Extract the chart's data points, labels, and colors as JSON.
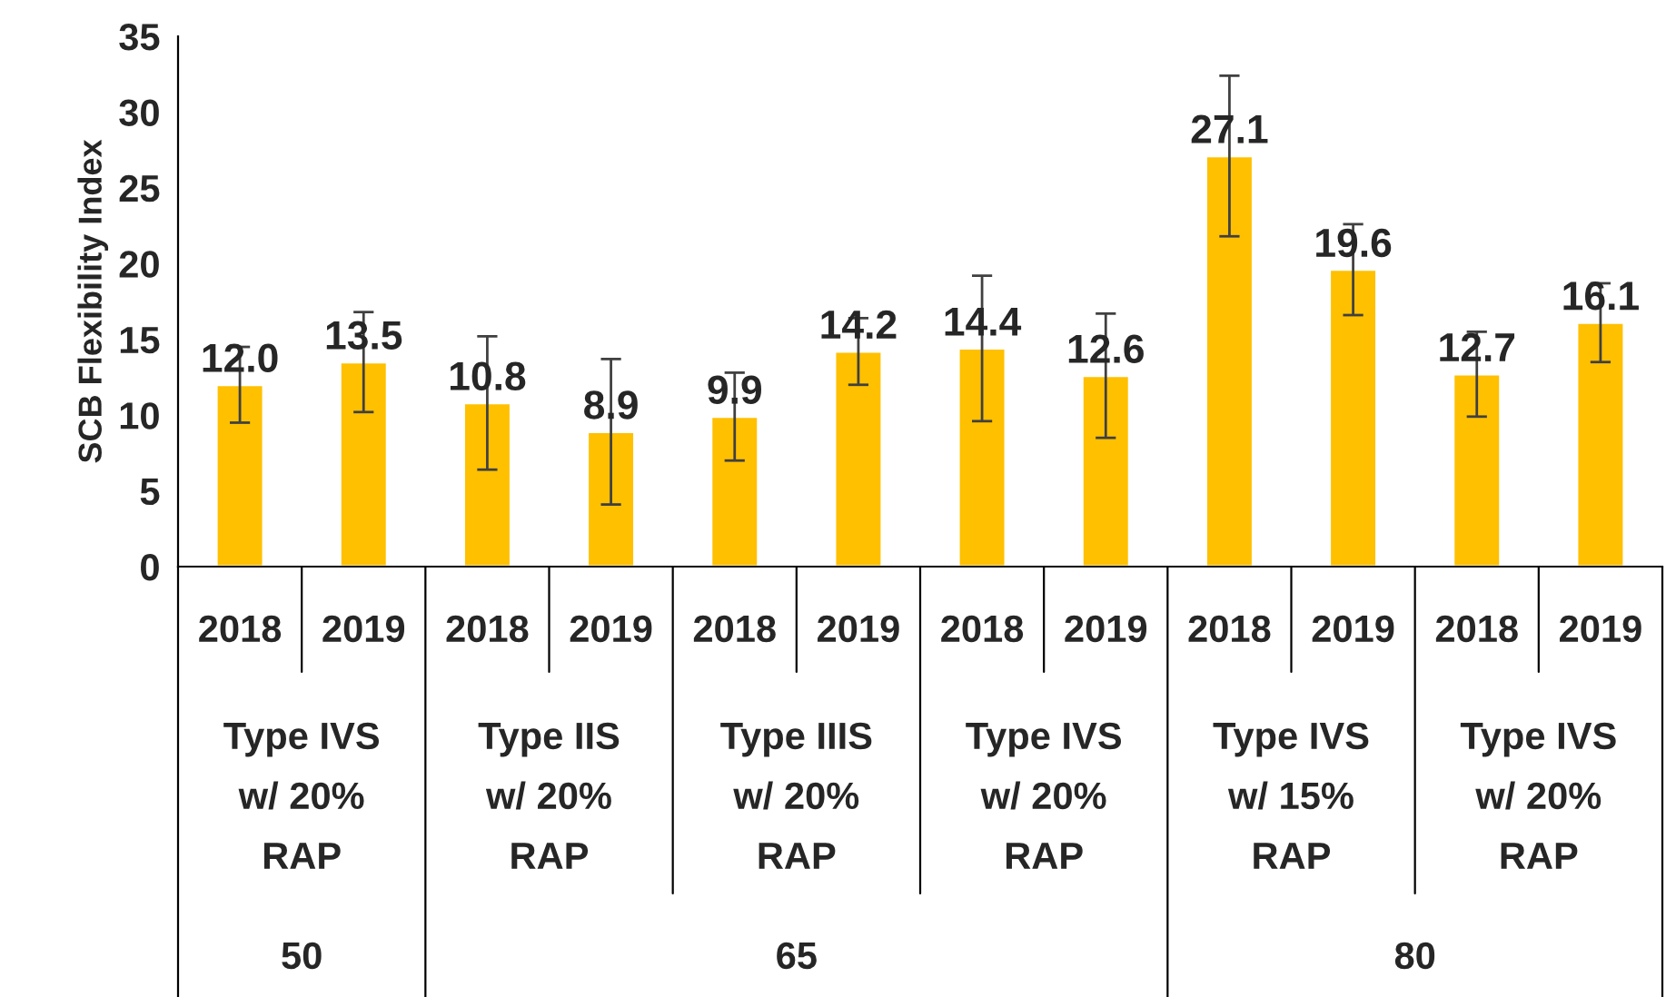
{
  "chart_data": {
    "type": "bar",
    "ylabel": "SCB Flexibility Index",
    "categories": [
      "2018",
      "2019",
      "2018",
      "2019",
      "2018",
      "2019",
      "2018",
      "2019",
      "2018",
      "2019",
      "2018",
      "2019"
    ],
    "values": [
      12.0,
      13.5,
      10.8,
      8.9,
      9.9,
      14.2,
      14.4,
      12.6,
      27.1,
      19.6,
      12.7,
      16.1
    ],
    "errors": [
      2.5,
      3.3,
      4.4,
      4.8,
      2.9,
      2.2,
      4.8,
      4.1,
      5.3,
      3.0,
      2.8,
      2.6
    ],
    "color": "#ffc000",
    "ylim": [
      0,
      35
    ],
    "yticks": [
      0,
      5,
      10,
      15,
      20,
      25,
      30,
      35
    ],
    "value_labels": [
      "12.0",
      "13.5",
      "10.8",
      "8.9",
      "9.9",
      "14.2",
      "14.4",
      "12.6",
      "27.1",
      "19.6",
      "12.7",
      "16.1"
    ],
    "annotations": [
      "Type IVS\nw/ 20%\nRAP",
      "Type IIS\nw/ 20%\nRAP",
      "Type IIIS\nw/ 20%\nRAP",
      "Type IVS\nw/ 20%\nRAP",
      "Type IVS\nw/ 15%\nRAP",
      "Type IVS\nw/ 20%\nRAP",
      "50",
      "65",
      "80"
    ]
  }
}
